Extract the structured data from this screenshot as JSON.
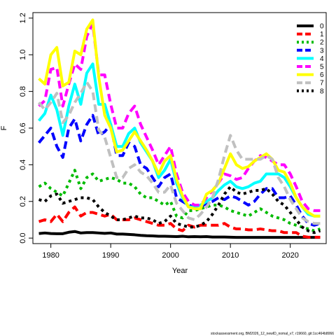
{
  "chart_data": {
    "type": "line",
    "xlabel": "Year",
    "ylabel": "F",
    "xlim": [
      1977,
      2026
    ],
    "ylim": [
      -0.03,
      1.23
    ],
    "xticks": [
      1980,
      1990,
      2000,
      2010,
      2020
    ],
    "yticks": [
      0.0,
      0.2,
      0.4,
      0.6,
      0.8,
      1.0,
      1.2
    ],
    "ytick_labels": [
      "0.0",
      "0.2",
      "0.4",
      "0.6",
      "0.8",
      "1.0",
      "1.2"
    ],
    "grid": false,
    "legend_position": "top-right",
    "x": [
      1978,
      1979,
      1980,
      1981,
      1982,
      1983,
      1984,
      1985,
      1986,
      1987,
      1988,
      1989,
      1990,
      1991,
      1992,
      1993,
      1994,
      1995,
      1996,
      1997,
      1998,
      1999,
      2000,
      2001,
      2002,
      2003,
      2004,
      2005,
      2006,
      2007,
      2008,
      2009,
      2010,
      2011,
      2012,
      2013,
      2014,
      2015,
      2016,
      2017,
      2018,
      2019,
      2020,
      2021,
      2022,
      2023,
      2024,
      2025
    ],
    "series": [
      {
        "name": "0",
        "color": "#000000",
        "dash": "solid",
        "values": [
          0.025,
          0.028,
          0.025,
          0.024,
          0.024,
          0.032,
          0.036,
          0.028,
          0.03,
          0.03,
          0.028,
          0.026,
          0.028,
          0.022,
          0.022,
          0.02,
          0.018,
          0.015,
          0.013,
          0.012,
          0.01,
          0.01,
          0.009,
          0.008,
          0.01,
          0.007,
          0.008,
          0.007,
          0.008,
          0.006,
          0.006,
          0.006,
          0.005,
          0.004,
          0.004,
          0.004,
          0.004,
          0.004,
          0.004,
          0.004,
          0.004,
          0.004,
          0.004,
          0.004,
          0.004,
          0.004,
          0.004,
          0.004
        ]
      },
      {
        "name": "1",
        "color": "#ff0000",
        "dash": "dash",
        "values": [
          0.09,
          0.1,
          0.09,
          0.13,
          0.09,
          0.14,
          0.17,
          0.12,
          0.14,
          0.14,
          0.13,
          0.12,
          0.13,
          0.1,
          0.1,
          0.1,
          0.11,
          0.1,
          0.09,
          0.08,
          0.07,
          0.07,
          0.08,
          0.05,
          0.04,
          0.07,
          0.06,
          0.07,
          0.07,
          0.07,
          0.07,
          0.08,
          0.06,
          0.05,
          0.05,
          0.045,
          0.045,
          0.05,
          0.045,
          0.04,
          0.04,
          0.03,
          0.03,
          0.03,
          0.01,
          0.005,
          0.005,
          0.005
        ]
      },
      {
        "name": "2",
        "color": "#00bb00",
        "dash": "dot",
        "values": [
          0.28,
          0.3,
          0.27,
          0.25,
          0.23,
          0.3,
          0.37,
          0.27,
          0.33,
          0.35,
          0.31,
          0.32,
          0.33,
          0.32,
          0.3,
          0.3,
          0.28,
          0.24,
          0.22,
          0.22,
          0.2,
          0.18,
          0.2,
          0.12,
          0.11,
          0.15,
          0.15,
          0.16,
          0.17,
          0.18,
          0.18,
          0.17,
          0.15,
          0.14,
          0.13,
          0.12,
          0.14,
          0.16,
          0.14,
          0.12,
          0.11,
          0.1,
          0.08,
          0.07,
          0.06,
          0.05,
          0.04,
          0.05
        ]
      },
      {
        "name": "3",
        "color": "#0000ff",
        "dash": "dash",
        "values": [
          0.52,
          0.56,
          0.6,
          0.5,
          0.44,
          0.6,
          0.65,
          0.53,
          0.62,
          0.67,
          0.56,
          0.58,
          0.62,
          0.45,
          0.45,
          0.52,
          0.5,
          0.4,
          0.38,
          0.33,
          0.28,
          0.33,
          0.35,
          0.22,
          0.2,
          0.18,
          0.17,
          0.17,
          0.19,
          0.2,
          0.22,
          0.21,
          0.23,
          0.22,
          0.2,
          0.18,
          0.2,
          0.24,
          0.27,
          0.27,
          0.22,
          0.22,
          0.23,
          0.18,
          0.12,
          0.08,
          0.07,
          0.08
        ]
      },
      {
        "name": "4",
        "color": "#00ffff",
        "dash": "solid",
        "values": [
          0.64,
          0.68,
          0.78,
          0.7,
          0.56,
          0.72,
          0.84,
          0.73,
          0.9,
          0.95,
          0.73,
          0.73,
          0.62,
          0.5,
          0.5,
          0.57,
          0.6,
          0.52,
          0.47,
          0.42,
          0.33,
          0.37,
          0.43,
          0.3,
          0.22,
          0.17,
          0.17,
          0.18,
          0.2,
          0.22,
          0.26,
          0.29,
          0.31,
          0.28,
          0.27,
          0.28,
          0.3,
          0.31,
          0.35,
          0.35,
          0.35,
          0.33,
          0.28,
          0.22,
          0.17,
          0.13,
          0.12,
          0.12
        ]
      },
      {
        "name": "5",
        "color": "#ff00ff",
        "dash": "dash",
        "values": [
          0.72,
          0.75,
          0.92,
          0.93,
          0.72,
          0.84,
          0.95,
          0.92,
          1.1,
          1.17,
          0.89,
          0.89,
          0.73,
          0.6,
          0.6,
          0.68,
          0.72,
          0.62,
          0.55,
          0.48,
          0.4,
          0.45,
          0.5,
          0.35,
          0.25,
          0.2,
          0.18,
          0.18,
          0.22,
          0.26,
          0.3,
          0.35,
          0.34,
          0.32,
          0.33,
          0.38,
          0.42,
          0.45,
          0.44,
          0.42,
          0.4,
          0.4,
          0.35,
          0.28,
          0.2,
          0.16,
          0.15,
          0.15
        ]
      },
      {
        "name": "6",
        "color": "#ffff00",
        "dash": "solid",
        "values": [
          0.87,
          0.84,
          1.0,
          1.04,
          0.83,
          0.85,
          1.02,
          1.0,
          1.14,
          1.19,
          0.88,
          0.67,
          0.6,
          0.47,
          0.48,
          0.53,
          0.58,
          0.53,
          0.48,
          0.42,
          0.35,
          0.42,
          0.45,
          0.32,
          0.23,
          0.17,
          0.16,
          0.16,
          0.24,
          0.26,
          0.3,
          0.38,
          0.46,
          0.4,
          0.38,
          0.39,
          0.42,
          0.44,
          0.46,
          0.43,
          0.37,
          0.36,
          0.3,
          0.22,
          0.17,
          0.14,
          0.12,
          0.12
        ]
      },
      {
        "name": "7",
        "color": "#c0c0c0",
        "dash": "dash",
        "values": [
          0.74,
          0.7,
          0.74,
          0.79,
          0.63,
          0.67,
          0.74,
          0.79,
          0.85,
          0.8,
          0.59,
          0.55,
          0.44,
          0.33,
          0.33,
          0.38,
          0.4,
          0.36,
          0.34,
          0.3,
          0.25,
          0.25,
          0.29,
          0.19,
          0.15,
          0.11,
          0.1,
          0.13,
          0.17,
          0.22,
          0.32,
          0.45,
          0.56,
          0.48,
          0.43,
          0.43,
          0.43,
          0.43,
          0.45,
          0.43,
          0.33,
          0.28,
          0.21,
          0.16,
          0.11,
          0.09,
          0.08,
          0.08
        ]
      },
      {
        "name": "8",
        "color": "#000000",
        "dash": "dot",
        "values": [
          0.21,
          0.2,
          0.23,
          0.24,
          0.19,
          0.2,
          0.21,
          0.22,
          0.22,
          0.21,
          0.17,
          0.14,
          0.12,
          0.1,
          0.1,
          0.11,
          0.12,
          0.11,
          0.11,
          0.1,
          0.08,
          0.09,
          0.12,
          0.08,
          0.07,
          0.06,
          0.06,
          0.07,
          0.09,
          0.13,
          0.18,
          0.24,
          0.28,
          0.25,
          0.24,
          0.25,
          0.26,
          0.26,
          0.27,
          0.24,
          0.2,
          0.18,
          0.14,
          0.1,
          0.06,
          0.04,
          0.03,
          0.04
        ]
      }
    ]
  },
  "footer_text": "stockassessment.org, BM2026_12_newID_nomal_v7, r19660, git:1cc464b8066"
}
